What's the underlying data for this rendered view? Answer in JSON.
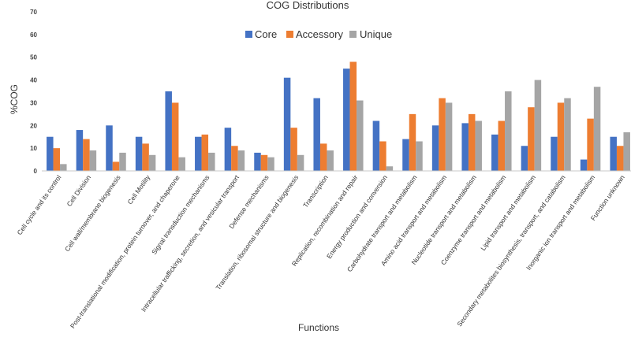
{
  "chart_data": {
    "type": "bar",
    "title": "COG Distributions",
    "xlabel": "Functions",
    "ylabel": "%COG",
    "ylim": [
      0,
      70
    ],
    "yticks": [
      0,
      10,
      20,
      30,
      40,
      50,
      60,
      70
    ],
    "grid": false,
    "legend_position": "top-center",
    "categories": [
      "Cell cycle and its control",
      "Cell Division",
      "Cell wall/membrane biogenesis",
      "Cell Motility",
      "Post-translational modification, protein turnover, and chaperone",
      "Signal transduction mechanisms",
      "Intracellular trafficking, secretion, and vesicular transport",
      "Defense mechanisms",
      "Translation, ribosomal structure and biogenesis",
      "Transcription",
      "Replication, recombination and repair",
      "Energy production and conversion",
      "Carbohydrate transport and metabolism",
      "Amino acid transport and metabolism",
      "Nucleotide transport and metabolism",
      "Coenzyme transport and metabolism",
      "Lipid transport and metabolism",
      "Secondary metabolites biosynthesis, transport, and catabolism",
      "Inorganic ion transport and metabolism",
      "Function unknown"
    ],
    "series": [
      {
        "name": "Core",
        "color": "#4472C4",
        "values": [
          15,
          18,
          20,
          15,
          35,
          15,
          19,
          8,
          41,
          32,
          45,
          22,
          14,
          20,
          21,
          16,
          11,
          15,
          5,
          15
        ]
      },
      {
        "name": "Accessory",
        "color": "#ED7D31",
        "values": [
          10,
          14,
          4,
          12,
          30,
          16,
          11,
          7,
          19,
          12,
          48,
          13,
          25,
          32,
          25,
          22,
          28,
          30,
          23,
          11
        ]
      },
      {
        "name": "Unique",
        "color": "#A5A5A5",
        "values": [
          3,
          9,
          8,
          7,
          6,
          8,
          9,
          6,
          7,
          9,
          31,
          2,
          13,
          30,
          22,
          35,
          40,
          32,
          37,
          17
        ]
      }
    ]
  }
}
